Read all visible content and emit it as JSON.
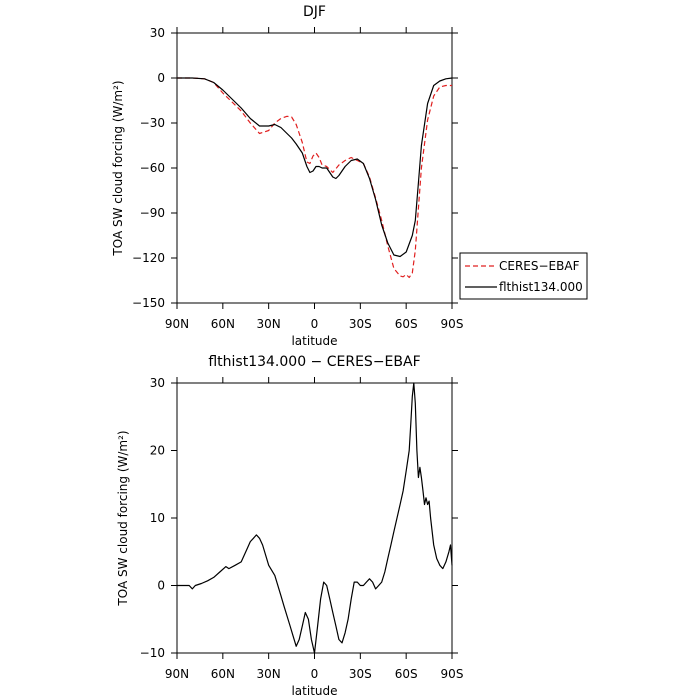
{
  "chart_data": [
    {
      "type": "line",
      "title": "DJF",
      "xlabel": "latitude",
      "ylabel": "TOA SW cloud forcing (W/m²)",
      "xlim": [
        90,
        -90
      ],
      "ylim": [
        -150,
        30
      ],
      "x_ticks": [
        90,
        60,
        30,
        0,
        -30,
        -60,
        -90
      ],
      "x_tick_labels": [
        "90N",
        "60N",
        "30N",
        "0",
        "30S",
        "60S",
        "90S"
      ],
      "y_ticks": [
        30,
        0,
        -30,
        -60,
        -90,
        -120,
        -150
      ],
      "y_tick_labels": [
        "30",
        "0",
        "−30",
        "−60",
        "−90",
        "−120",
        "−150"
      ],
      "legend": "outside-right",
      "series": [
        {
          "name": "CERES−EBAF",
          "color": "#e02020",
          "dash": "dashed",
          "x": [
            90,
            80,
            72,
            66,
            60,
            54,
            48,
            42,
            36,
            30,
            26,
            22,
            18,
            15,
            12,
            8,
            5,
            3,
            1,
            -1,
            -3,
            -5,
            -8,
            -12,
            -16,
            -20,
            -24,
            -28,
            -32,
            -36,
            -40,
            -44,
            -48,
            -52,
            -56,
            -58,
            -60,
            -62,
            -64,
            -66,
            -70,
            -74,
            -78,
            -82,
            -86,
            -90
          ],
          "y": [
            0,
            0,
            -0.5,
            -3,
            -10,
            -16,
            -22,
            -30,
            -37,
            -35,
            -30,
            -27,
            -25.5,
            -26,
            -31,
            -43,
            -56,
            -57,
            -52,
            -50,
            -53,
            -58,
            -59,
            -63,
            -58,
            -55,
            -53,
            -55,
            -57,
            -66,
            -80,
            -95,
            -112,
            -127,
            -132,
            -132.5,
            -131,
            -133,
            -130,
            -115,
            -60,
            -28,
            -12,
            -6,
            -5,
            -5
          ]
        },
        {
          "name": "flthist134.000",
          "color": "#000000",
          "dash": "solid",
          "x": [
            90,
            80,
            72,
            66,
            60,
            54,
            48,
            42,
            36,
            30,
            26,
            22,
            18,
            15,
            12,
            8,
            5,
            3,
            1,
            -1,
            -3,
            -5,
            -8,
            -12,
            -14,
            -16,
            -20,
            -24,
            -28,
            -32,
            -36,
            -40,
            -44,
            -48,
            -52,
            -56,
            -60,
            -64,
            -66,
            -68,
            -70,
            -74,
            -78,
            -82,
            -86,
            -90
          ],
          "y": [
            0,
            0,
            -0.5,
            -3,
            -8,
            -14,
            -20,
            -27,
            -32,
            -32,
            -31,
            -33,
            -37,
            -40,
            -44,
            -50,
            -59,
            -63,
            -62,
            -59,
            -59,
            -60,
            -60,
            -66,
            -67,
            -65,
            -59,
            -55,
            -54,
            -57,
            -67,
            -81,
            -98,
            -110,
            -118,
            -119,
            -116,
            -105,
            -95,
            -70,
            -45,
            -17,
            -5,
            -2,
            -0.5,
            0
          ]
        }
      ]
    },
    {
      "type": "line",
      "title": "flthist134.000 − CERES−EBAF",
      "xlabel": "latitude",
      "ylabel": "TOA SW cloud forcing (W/m²)",
      "xlim": [
        90,
        -90
      ],
      "ylim": [
        -10,
        30
      ],
      "x_ticks": [
        90,
        60,
        30,
        0,
        -30,
        -60,
        -90
      ],
      "x_tick_labels": [
        "90N",
        "60N",
        "30N",
        "0",
        "30S",
        "60S",
        "90S"
      ],
      "y_ticks": [
        30,
        20,
        10,
        0,
        -10
      ],
      "y_tick_labels": [
        "30",
        "20",
        "10",
        "0",
        "−10"
      ],
      "series": [
        {
          "color": "#000000",
          "x": [
            90,
            82,
            80,
            78,
            74,
            70,
            66,
            62,
            58,
            56,
            52,
            48,
            44,
            42,
            40,
            38,
            36,
            34,
            30,
            26,
            22,
            20,
            16,
            14,
            12,
            10,
            8,
            6,
            4,
            2,
            0,
            -2,
            -4,
            -6,
            -8,
            -10,
            -12,
            -14,
            -16,
            -18,
            -20,
            -22,
            -24,
            -26,
            -28,
            -30,
            -32,
            -34,
            -36,
            -38,
            -40,
            -42,
            -44,
            -46,
            -48,
            -50,
            -52,
            -54,
            -56,
            -58,
            -60,
            -62,
            -63,
            -64,
            -65,
            -66,
            -67,
            -68,
            -69,
            -70,
            -71,
            -72,
            -73,
            -74,
            -75,
            -76,
            -78,
            -80,
            -82,
            -84,
            -86,
            -88,
            -89,
            -90
          ],
          "y": [
            0,
            0,
            -0.5,
            0,
            0.3,
            0.7,
            1.2,
            2,
            2.8,
            2.5,
            3,
            3.5,
            5.5,
            6.5,
            7,
            7.5,
            7,
            6,
            3,
            1.5,
            -1.5,
            -3,
            -6,
            -7.5,
            -9,
            -8,
            -6,
            -4,
            -5,
            -8,
            -10,
            -6,
            -2,
            0.5,
            0,
            -2,
            -4,
            -6,
            -8,
            -8.5,
            -7,
            -5,
            -2,
            0.5,
            0.5,
            0,
            0,
            0.5,
            1,
            0.5,
            -0.5,
            0,
            0.5,
            2,
            4,
            6,
            8,
            10,
            12,
            14,
            17,
            20,
            24,
            28,
            30,
            27,
            20,
            16,
            17.5,
            16,
            14,
            12,
            13,
            12,
            12.5,
            10,
            6,
            4,
            3,
            2.5,
            3.5,
            5,
            6,
            3
          ]
        }
      ]
    }
  ]
}
